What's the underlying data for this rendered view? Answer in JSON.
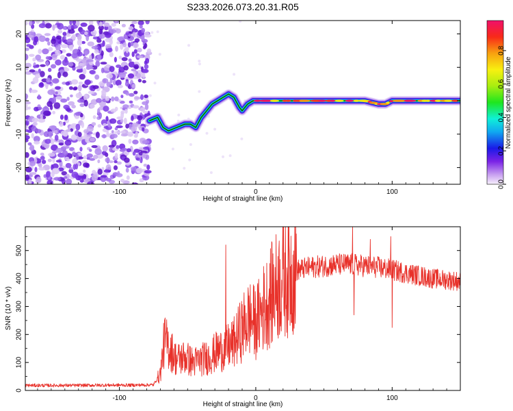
{
  "chart_data": [
    {
      "type": "heatmap",
      "title": "S233.2026.073.20.31.R05",
      "xlabel": "Height of straight line (km)",
      "ylabel": "Frequency (Hz)",
      "xlim": [
        -169,
        150
      ],
      "ylim": [
        -25,
        24
      ],
      "x_ticks": [
        -100,
        0,
        100
      ],
      "y_ticks": [
        20,
        10,
        0,
        -10,
        -20
      ],
      "noise_region_x": [
        -169,
        -78
      ],
      "ridge": {
        "x": [
          -78,
          -72,
          -68,
          -64,
          -58,
          -52,
          -48,
          -44,
          -40,
          -36,
          -32,
          -28,
          -24,
          -20,
          -16,
          -12,
          -10,
          -6,
          -2,
          0,
          10,
          20,
          30,
          40,
          50,
          60,
          70,
          80,
          90,
          95,
          100,
          110,
          120,
          130,
          140,
          150
        ],
        "y": [
          -6,
          -5,
          -8,
          -9,
          -8,
          -7,
          -7,
          -8,
          -5,
          -3,
          -1,
          0,
          1,
          2,
          1,
          -2,
          -3,
          -1,
          0,
          0,
          0,
          0,
          0,
          0,
          0,
          0,
          0,
          0,
          -1,
          -1,
          0,
          0,
          0,
          0,
          0,
          0
        ]
      },
      "colorbar": {
        "label": "Normalized spectral amplitude",
        "range": [
          0,
          0.98
        ],
        "ticks": [
          0.0,
          0.2,
          0.4,
          0.6,
          0.8
        ]
      }
    },
    {
      "type": "line",
      "xlabel": "Height of straight line (km)",
      "ylabel": "SNR (10 * v/v)",
      "xlim": [
        -169,
        150
      ],
      "ylim": [
        0,
        585
      ],
      "x_ticks": [
        -100,
        0,
        100
      ],
      "y_ticks": [
        0,
        100,
        200,
        300,
        400,
        500
      ],
      "color": "#e8312a",
      "series": [
        {
          "name": "SNR",
          "x": [
            -169,
            -150,
            -130,
            -110,
            -90,
            -75,
            -70,
            -67,
            -63,
            -58,
            -52,
            -46,
            -40,
            -34,
            -28,
            -22,
            -16,
            -10,
            -5,
            0,
            5,
            10,
            15,
            20,
            25,
            30,
            40,
            50,
            60,
            70,
            80,
            90,
            100,
            110,
            120,
            130,
            140,
            150
          ],
          "y": [
            18,
            18,
            18,
            19,
            19,
            20,
            60,
            180,
            150,
            110,
            120,
            100,
            110,
            120,
            140,
            150,
            170,
            220,
            260,
            240,
            290,
            330,
            370,
            400,
            420,
            430,
            440,
            445,
            450,
            450,
            445,
            440,
            430,
            420,
            410,
            400,
            395,
            390
          ]
        }
      ],
      "spikes": [
        {
          "x": -22,
          "y": 520
        },
        {
          "x": 71,
          "y": 585
        },
        {
          "x": 72,
          "y": 270
        },
        {
          "x": 84,
          "y": 540
        },
        {
          "x": 99,
          "y": 550
        },
        {
          "x": 100,
          "y": 225
        }
      ]
    }
  ]
}
